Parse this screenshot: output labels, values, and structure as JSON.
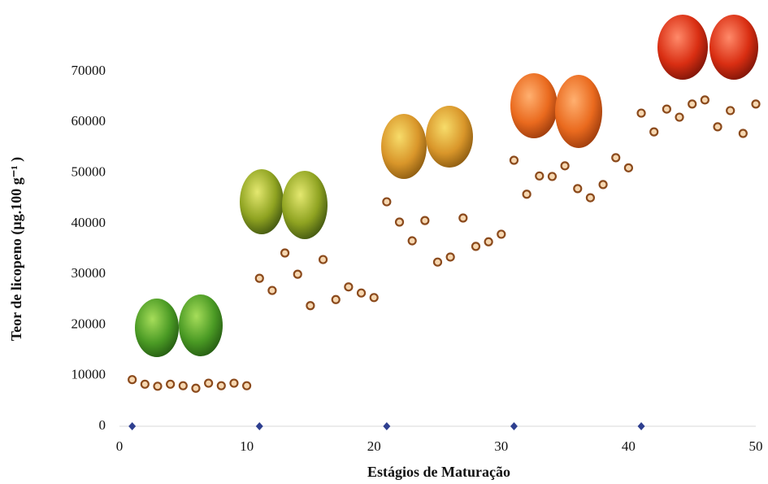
{
  "chart_data": {
    "type": "scatter",
    "x_label": "Estágios de Maturação",
    "y_label": "Teor de licopeno (µg.100 g⁻¹ )",
    "xlim": [
      0,
      50
    ],
    "xticks": [
      0,
      10,
      20,
      30,
      40,
      50
    ],
    "ylim": [
      0,
      70000
    ],
    "yticks": [
      0,
      10000,
      20000,
      30000,
      40000,
      50000,
      60000,
      70000
    ],
    "grid": false,
    "series": [
      {
        "color": "#8b4a1c",
        "x": [
          1,
          2,
          3,
          4,
          5,
          6,
          7,
          8,
          9,
          10,
          11,
          12,
          13,
          14,
          15,
          16,
          17,
          18,
          19,
          20,
          21,
          22,
          23,
          24,
          25,
          26,
          27,
          28,
          29,
          30,
          31,
          32,
          33,
          34,
          35,
          36,
          37,
          38,
          39,
          40,
          41,
          42,
          43,
          44,
          45,
          46,
          47,
          48,
          49,
          50
        ],
        "values": [
          9200,
          8300,
          7900,
          8300,
          8000,
          7500,
          8500,
          8000,
          8500,
          8000,
          29200,
          26800,
          34200,
          30000,
          23800,
          32900,
          25000,
          27500,
          26300,
          25400,
          44300,
          40300,
          36600,
          40600,
          32400,
          33400,
          41100,
          35500,
          36400,
          37900,
          52500,
          45800,
          49400,
          49300,
          51400,
          46900,
          45100,
          47700,
          53000,
          51000,
          61800,
          58100,
          62600,
          61000,
          63600,
          64400,
          59100,
          62300,
          57800,
          63600
        ]
      },
      {
        "color": "#2e3f8f",
        "marker": "diamond",
        "x": [
          1,
          11,
          21,
          31,
          41
        ],
        "values": [
          0,
          0,
          0,
          0,
          0
        ]
      }
    ]
  }
}
